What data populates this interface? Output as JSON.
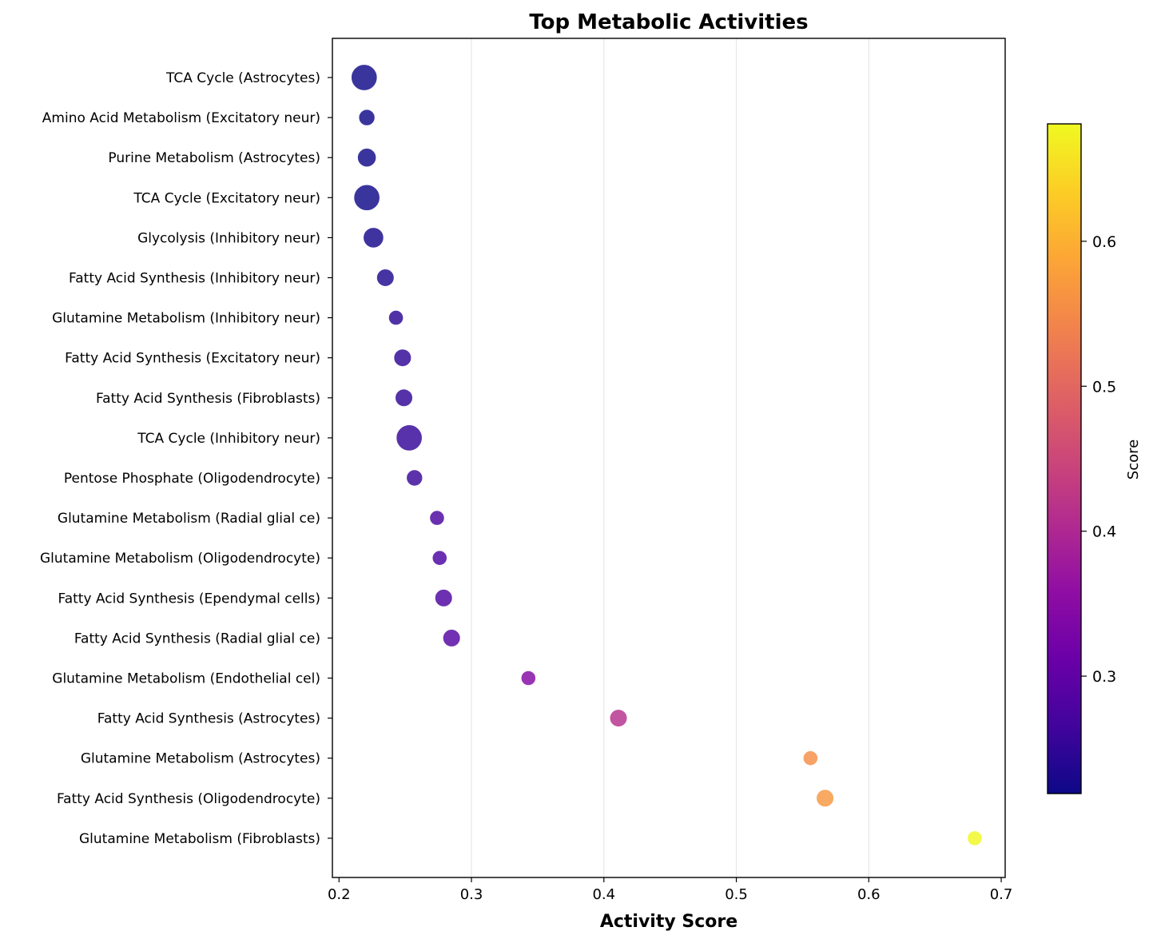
{
  "chart_data": {
    "type": "scatter",
    "title": "Top Metabolic Activities",
    "xlabel": "Activity Score",
    "ylabel": "",
    "xlim": [
      0.195,
      0.703
    ],
    "xticks": [
      0.2,
      0.3,
      0.4,
      0.5,
      0.6,
      0.7
    ],
    "xtick_labels": [
      "0.2",
      "0.3",
      "0.4",
      "0.5",
      "0.6",
      "0.7"
    ],
    "grid": "x",
    "colormap": "plasma",
    "colorbar": {
      "label": "Score",
      "range": [
        0.219,
        0.681
      ],
      "ticks": [
        0.3,
        0.4,
        0.5,
        0.6
      ],
      "tick_labels": [
        "0.3",
        "0.4",
        "0.5",
        "0.6"
      ]
    },
    "points": [
      {
        "label": "TCA Cycle (Astrocytes)",
        "x": 0.219,
        "size": 3.0
      },
      {
        "label": "Amino Acid Metabolism (Excitatory neur)",
        "x": 0.221,
        "size": 1.1
      },
      {
        "label": "Purine Metabolism (Astrocytes)",
        "x": 0.221,
        "size": 1.5
      },
      {
        "label": "TCA Cycle (Excitatory neur)",
        "x": 0.221,
        "size": 3.0
      },
      {
        "label": "Glycolysis (Inhibitory neur)",
        "x": 0.226,
        "size": 1.8
      },
      {
        "label": "Fatty Acid Synthesis (Inhibitory neur)",
        "x": 0.235,
        "size": 1.3
      },
      {
        "label": "Glutamine Metabolism (Inhibitory neur)",
        "x": 0.243,
        "size": 0.9
      },
      {
        "label": "Fatty Acid Synthesis (Excitatory neur)",
        "x": 0.248,
        "size": 1.3
      },
      {
        "label": "Fatty Acid Synthesis (Fibroblasts)",
        "x": 0.249,
        "size": 1.3
      },
      {
        "label": "TCA Cycle (Inhibitory neur)",
        "x": 0.253,
        "size": 3.0
      },
      {
        "label": "Pentose Phosphate (Oligodendrocyte)",
        "x": 0.257,
        "size": 1.1
      },
      {
        "label": "Glutamine Metabolism (Radial glial ce)",
        "x": 0.274,
        "size": 0.9
      },
      {
        "label": "Glutamine Metabolism (Oligodendrocyte)",
        "x": 0.276,
        "size": 0.9
      },
      {
        "label": "Fatty Acid Synthesis (Ependymal cells)",
        "x": 0.279,
        "size": 1.3
      },
      {
        "label": "Fatty Acid Synthesis (Radial glial ce)",
        "x": 0.285,
        "size": 1.3
      },
      {
        "label": "Glutamine Metabolism (Endothelial cel)",
        "x": 0.343,
        "size": 0.9
      },
      {
        "label": "Fatty Acid Synthesis (Astrocytes)",
        "x": 0.411,
        "size": 1.3
      },
      {
        "label": "Glutamine Metabolism (Astrocytes)",
        "x": 0.556,
        "size": 0.9
      },
      {
        "label": "Fatty Acid Synthesis (Oligodendrocyte)",
        "x": 0.567,
        "size": 1.3
      },
      {
        "label": "Glutamine Metabolism (Fibroblasts)",
        "x": 0.68,
        "size": 0.9
      }
    ]
  }
}
